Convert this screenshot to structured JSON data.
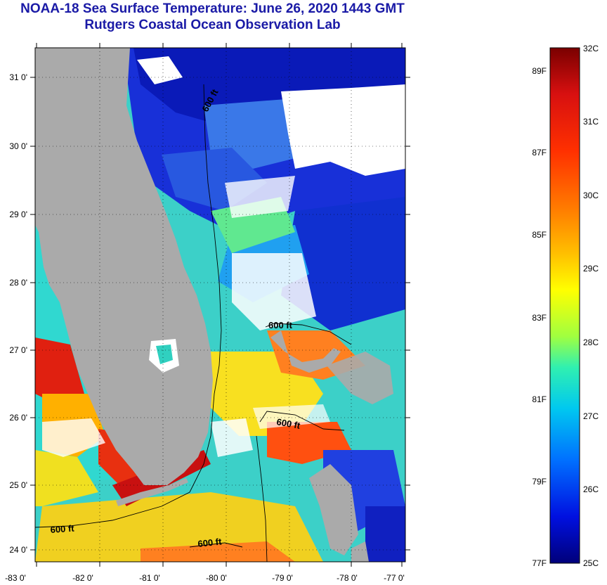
{
  "header": {
    "title": "NOAA-18 Sea Surface Temperature:  June 26, 2020 1443 GMT",
    "subtitle": "Rutgers Coastal Ocean Observation Lab"
  },
  "map": {
    "lat_ticks": [
      "31 0'",
      "30 0'",
      "29 0'",
      "28 0'",
      "27 0'",
      "26 0'",
      "25 0'",
      "24 0'"
    ],
    "lon_ticks": [
      "-83 0'",
      "-82 0'",
      "-81 0'",
      "-80 0'",
      "-79 0'",
      "-78 0'",
      "-77 0'"
    ],
    "contour_labels": [
      "600 ft",
      "600 ft",
      "600 ft",
      "600 ft",
      "600 ft"
    ],
    "land_color": "#aaaaaa",
    "cloud_color": "#ffffff"
  },
  "colorbar": {
    "celsius_labels": [
      "32C",
      "31C",
      "30C",
      "29C",
      "28C",
      "27C",
      "26C",
      "25C"
    ],
    "fahrenheit_labels": [
      "89F",
      "87F",
      "85F",
      "83F",
      "81F",
      "79F",
      "77F"
    ],
    "min_c": 25,
    "max_c": 32,
    "palette": [
      "#7a0000",
      "#d81010",
      "#ff3000",
      "#ff7a00",
      "#ffc000",
      "#ffff00",
      "#a0ff40",
      "#30f0b0",
      "#00c8f0",
      "#0070ff",
      "#0010e0",
      "#00007a"
    ]
  }
}
